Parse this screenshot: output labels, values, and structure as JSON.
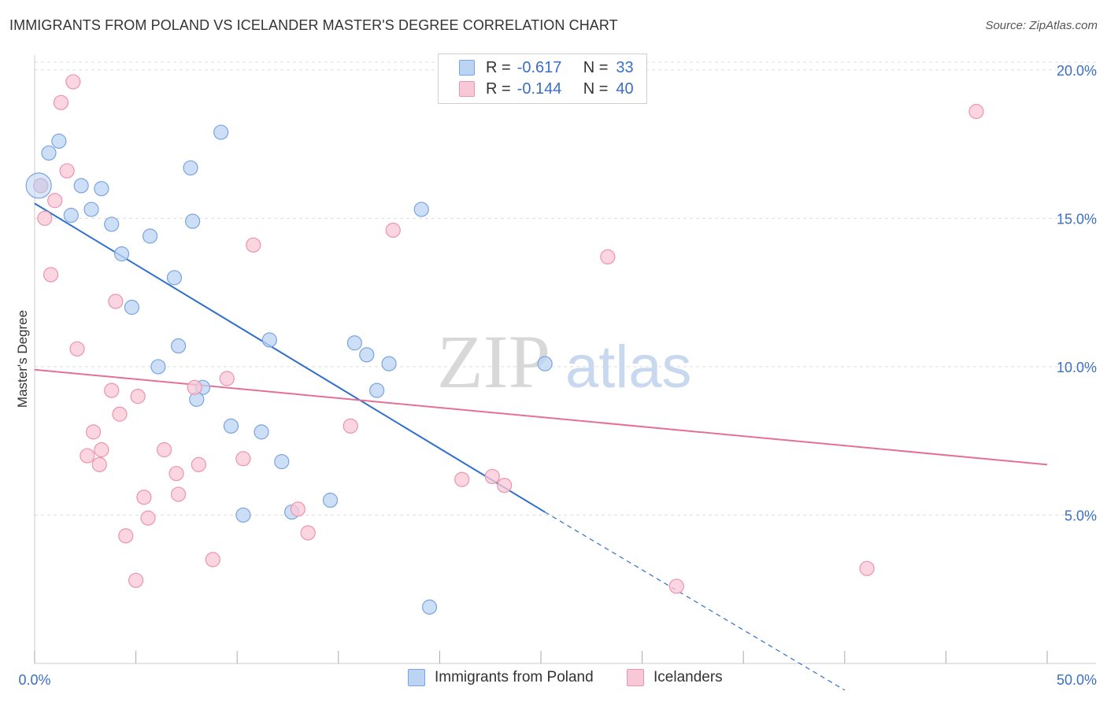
{
  "title": "IMMIGRANTS FROM POLAND VS ICELANDER MASTER'S DEGREE CORRELATION CHART",
  "source": "Source: ZipAtlas.com",
  "watermark": {
    "zip": "ZIP",
    "atlas": "atlas"
  },
  "colors": {
    "blue_fill": "#bcd4f3",
    "blue_stroke": "#7aa4e0",
    "blue_line": "#2e6fcf",
    "pink_fill": "#f9c8d7",
    "pink_stroke": "#ec93b0",
    "pink_line": "#e4709a",
    "grid": "#dddddd",
    "tick_label": "#3a6fc4"
  },
  "legend": {
    "rows": [
      {
        "r_label": "R =",
        "r_value": "-0.617",
        "n_label": "N =",
        "n_value": "33"
      },
      {
        "r_label": "R =",
        "r_value": "-0.144",
        "n_label": "N =",
        "n_value": "40"
      }
    ]
  },
  "bottom_legend": {
    "series1": "Immigrants from Poland",
    "series2": "Icelanders"
  },
  "chart_data": {
    "type": "scatter",
    "title": "IMMIGRANTS FROM POLAND VS ICELANDER MASTER'S DEGREE CORRELATION CHART",
    "xlabel": "",
    "ylabel": "Master's Degree",
    "xlim": [
      0,
      50
    ],
    "ylim": [
      0,
      20.5
    ],
    "x_tick_labels": [
      "0.0%",
      "50.0%"
    ],
    "y_ticks": [
      5,
      10,
      15,
      20
    ],
    "y_tick_labels": [
      "5.0%",
      "10.0%",
      "15.0%",
      "20.0%"
    ],
    "grid": true,
    "legend_position": "top-center",
    "series": [
      {
        "name": "Immigrants from Poland",
        "points": [
          [
            0.7,
            17.2
          ],
          [
            1.2,
            17.6
          ],
          [
            0.3,
            16.1
          ],
          [
            2.3,
            16.1
          ],
          [
            3.3,
            16.0
          ],
          [
            1.8,
            15.1
          ],
          [
            2.8,
            15.3
          ],
          [
            3.8,
            14.8
          ],
          [
            7.7,
            16.7
          ],
          [
            9.2,
            17.9
          ],
          [
            5.7,
            14.4
          ],
          [
            7.8,
            14.9
          ],
          [
            4.3,
            13.8
          ],
          [
            6.9,
            13.0
          ],
          [
            4.8,
            12.0
          ],
          [
            11.6,
            10.9
          ],
          [
            7.1,
            10.7
          ],
          [
            6.1,
            10.0
          ],
          [
            8.3,
            9.3
          ],
          [
            8.0,
            8.9
          ],
          [
            15.8,
            10.8
          ],
          [
            16.4,
            10.4
          ],
          [
            17.5,
            10.1
          ],
          [
            16.9,
            9.2
          ],
          [
            19.1,
            15.3
          ],
          [
            9.7,
            8.0
          ],
          [
            11.2,
            7.8
          ],
          [
            12.2,
            6.8
          ],
          [
            14.6,
            5.5
          ],
          [
            10.3,
            5.0
          ],
          [
            12.7,
            5.1
          ],
          [
            25.2,
            10.1
          ],
          [
            19.5,
            1.9
          ]
        ],
        "trend": {
          "x0": 0,
          "y0": 15.5,
          "x1": 25.2,
          "y1": 5.1,
          "dash_to_x": 40,
          "dash_to_y": -0.9
        }
      },
      {
        "name": "Icelanders",
        "points": [
          [
            1.9,
            19.6
          ],
          [
            1.3,
            18.9
          ],
          [
            1.6,
            16.6
          ],
          [
            0.3,
            16.1
          ],
          [
            1.0,
            15.6
          ],
          [
            0.5,
            15.0
          ],
          [
            10.8,
            14.1
          ],
          [
            17.7,
            14.6
          ],
          [
            0.8,
            13.1
          ],
          [
            4.0,
            12.2
          ],
          [
            2.1,
            10.6
          ],
          [
            9.5,
            9.6
          ],
          [
            7.9,
            9.3
          ],
          [
            3.8,
            9.2
          ],
          [
            5.1,
            9.0
          ],
          [
            4.2,
            8.4
          ],
          [
            2.9,
            7.8
          ],
          [
            15.6,
            8.0
          ],
          [
            2.6,
            7.0
          ],
          [
            3.3,
            7.2
          ],
          [
            6.4,
            7.2
          ],
          [
            3.2,
            6.7
          ],
          [
            10.3,
            6.9
          ],
          [
            8.1,
            6.7
          ],
          [
            7.0,
            6.4
          ],
          [
            7.1,
            5.7
          ],
          [
            5.4,
            5.6
          ],
          [
            21.1,
            6.2
          ],
          [
            22.6,
            6.3
          ],
          [
            23.2,
            6.0
          ],
          [
            5.6,
            4.9
          ],
          [
            13.0,
            5.2
          ],
          [
            4.5,
            4.3
          ],
          [
            13.5,
            4.4
          ],
          [
            8.8,
            3.5
          ],
          [
            5.0,
            2.8
          ],
          [
            28.3,
            13.7
          ],
          [
            46.5,
            18.6
          ],
          [
            41.1,
            3.2
          ],
          [
            31.7,
            2.6
          ]
        ],
        "trend": {
          "x0": 0,
          "y0": 9.9,
          "x1": 50,
          "y1": 6.7
        }
      }
    ]
  }
}
